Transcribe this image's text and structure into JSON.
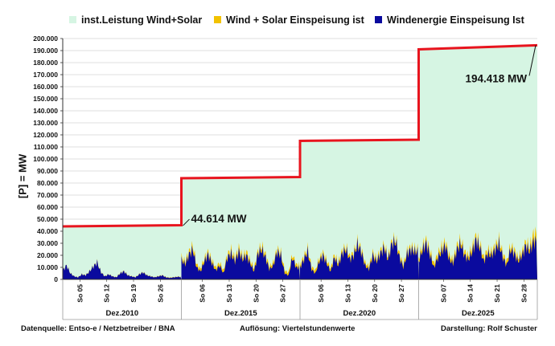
{
  "chart_data": {
    "type": "area",
    "ylabel": "[P] =   MW",
    "ylim": [
      0,
      200000
    ],
    "yticks": [
      "0",
      "10.000",
      "20.000",
      "30.000",
      "40.000",
      "50.000",
      "60.000",
      "70.000",
      "80.000",
      "90.000",
      "100.000",
      "110.000",
      "120.000",
      "130.000",
      "140.000",
      "150.000",
      "160.000",
      "170.000",
      "180.000",
      "190.000",
      "200.000"
    ],
    "grid": true,
    "legend_position": "top",
    "legend": [
      {
        "label": "inst.Leistung Wind+Solar",
        "color": "#d6f5e3"
      },
      {
        "label": "Wind + Solar Einspeisung ist",
        "color": "#f2c200"
      },
      {
        "label": "Windenergie Einspeisung Ist",
        "color": "#0a0a9e"
      }
    ],
    "colors": {
      "capacity_line": "#e8141e",
      "capacity_fill": "#d6f5e3",
      "solar": "#f2c200",
      "wind": "#0a0a9e"
    },
    "periods": [
      {
        "month": "Dez.2010",
        "day_ticks": [
          "So 05",
          "So 12",
          "So 19",
          "So 26"
        ],
        "installed_capacity_mw": [
          44000,
          45000
        ],
        "wind_daily_mw": [
          9000,
          14000,
          6000,
          3000,
          2000,
          5000,
          4000,
          8000,
          13000,
          17000,
          7000,
          3000,
          5000,
          3000,
          2000,
          6000,
          8000,
          4000,
          3000,
          2000,
          5000,
          7000,
          4000,
          3000,
          2000,
          3000,
          4000,
          2000,
          1500,
          2000,
          2500
        ],
        "wind_solar_daily_mw": [
          9300,
          14200,
          6200,
          3200,
          2200,
          5200,
          4200,
          8300,
          13300,
          17300,
          7300,
          3200,
          5200,
          3200,
          2300,
          6300,
          8300,
          4300,
          3200,
          2300,
          5300,
          7300,
          4300,
          3200,
          2300,
          3300,
          4300,
          2300,
          1800,
          2300,
          2800
        ]
      },
      {
        "month": "Dez.2015",
        "day_ticks": [
          "So 06",
          "So 13",
          "So 20",
          "So 27"
        ],
        "installed_capacity_mw": [
          84000,
          85000
        ],
        "wind_daily_mw": [
          20000,
          15000,
          25000,
          30000,
          12000,
          8000,
          18000,
          25000,
          16000,
          9000,
          14000,
          6000,
          22000,
          26000,
          18000,
          28000,
          20000,
          24000,
          16000,
          8000,
          26000,
          30000,
          22000,
          10000,
          14000,
          28000,
          24000,
          6000,
          4000,
          22000,
          12000
        ],
        "wind_solar_daily_mw": [
          23000,
          18000,
          28000,
          34000,
          15000,
          11000,
          21000,
          28000,
          19000,
          12000,
          17000,
          9000,
          25000,
          30000,
          21000,
          32000,
          23000,
          28000,
          19000,
          11000,
          29000,
          34000,
          25000,
          13000,
          17000,
          31000,
          27000,
          9000,
          7000,
          25000,
          15000
        ]
      },
      {
        "month": "Dez.2020",
        "day_ticks": [
          "So 06",
          "So 13",
          "So 20",
          "So 27"
        ],
        "installed_capacity_mw": [
          115000,
          116000
        ],
        "wind_daily_mw": [
          12000,
          20000,
          28000,
          10000,
          6000,
          18000,
          24000,
          16000,
          8000,
          22000,
          14000,
          26000,
          30000,
          20000,
          24000,
          35000,
          28000,
          14000,
          10000,
          24000,
          18000,
          26000,
          32000,
          20000,
          36000,
          38000,
          22000,
          12000,
          26000,
          30000,
          28000
        ],
        "wind_solar_daily_mw": [
          15000,
          23000,
          31000,
          13000,
          9000,
          21000,
          27000,
          19000,
          11000,
          25000,
          17000,
          29000,
          33000,
          23000,
          27000,
          38000,
          31000,
          17000,
          13000,
          27000,
          21000,
          29000,
          35000,
          23000,
          39000,
          41000,
          25000,
          15000,
          29000,
          33000,
          31000
        ]
      },
      {
        "month": "Dez.2025",
        "day_ticks": [
          "So 07",
          "So 14",
          "So 21",
          "So 28"
        ],
        "installed_capacity_mw": [
          191000,
          194418
        ],
        "wind_daily_mw": [
          18000,
          30000,
          36000,
          24000,
          12000,
          22000,
          28000,
          34000,
          20000,
          16000,
          30000,
          36000,
          24000,
          20000,
          28000,
          40000,
          32000,
          18000,
          26000,
          24000,
          30000,
          36000,
          22000,
          14000,
          30000,
          26000,
          18000,
          24000,
          34000,
          28000,
          38000
        ],
        "wind_solar_daily_mw": [
          22000,
          34000,
          40000,
          28000,
          16000,
          26000,
          33000,
          38000,
          24000,
          20000,
          34000,
          40000,
          28000,
          24000,
          33000,
          44000,
          36000,
          22000,
          30000,
          28000,
          34000,
          40000,
          26000,
          18000,
          34000,
          30000,
          22000,
          28000,
          38000,
          33000,
          46000
        ]
      }
    ],
    "annotations": [
      {
        "text": "44.614 MW",
        "value_mw": 44614
      },
      {
        "text": "194.418 MW",
        "value_mw": 194418
      }
    ]
  },
  "footer": {
    "source": "Datenquelle:  Entso-e  / Netzbetreiber / BNA",
    "resolution": "Auflösung: Viertelstundenwerte",
    "author": "Darstellung:  Rolf Schuster"
  }
}
